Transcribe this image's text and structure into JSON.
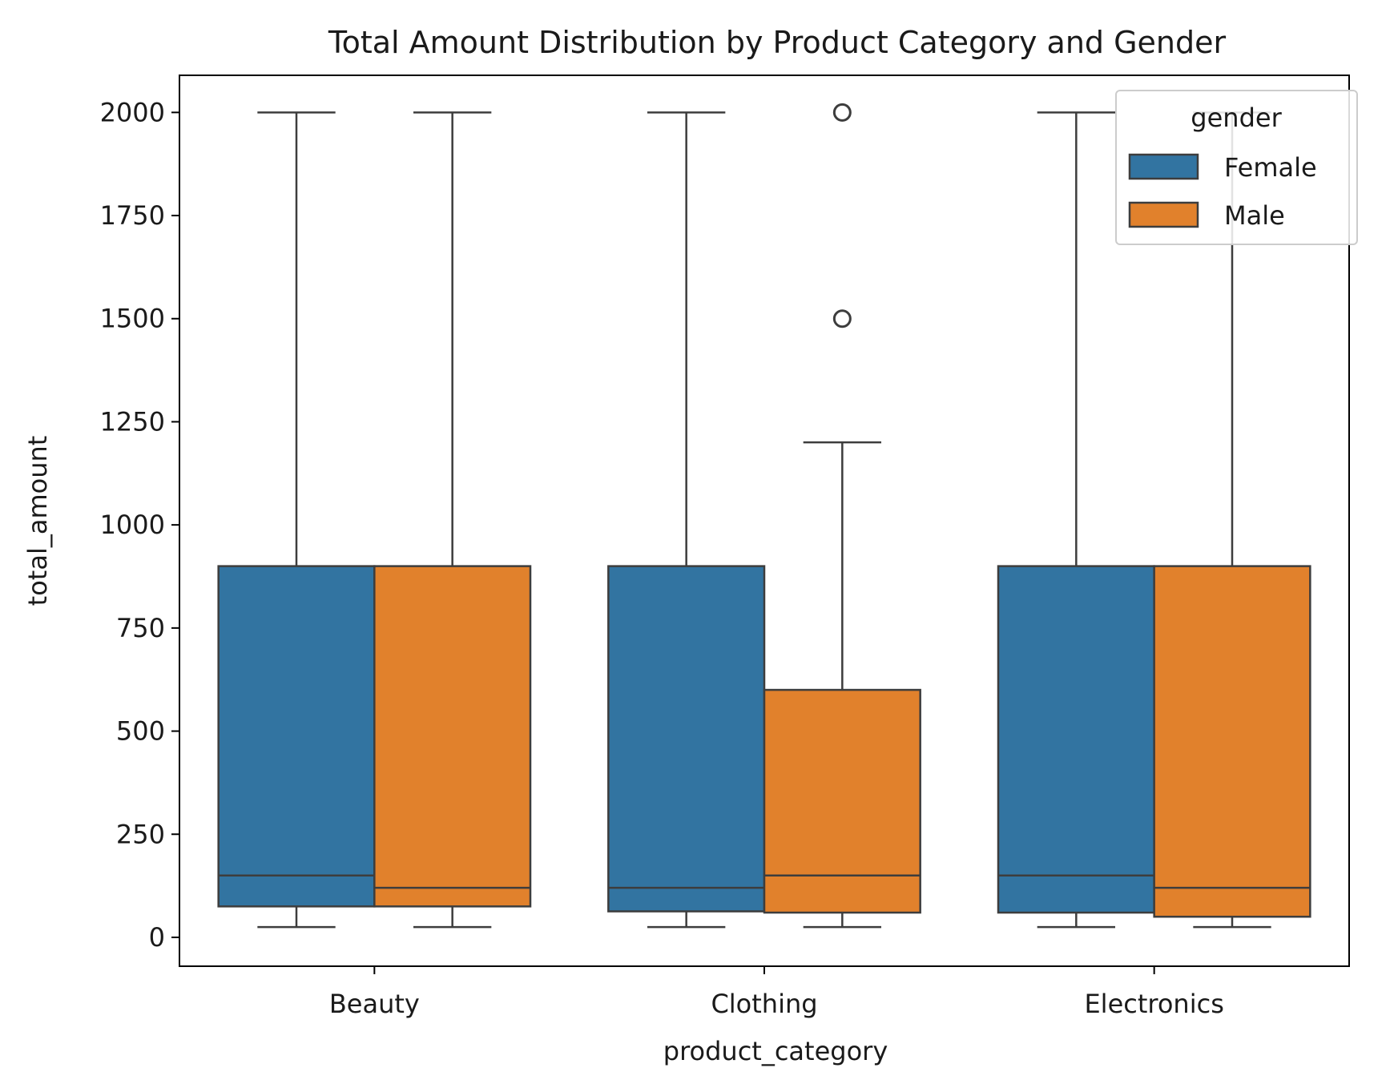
{
  "chart_data": {
    "type": "box",
    "title": "Total Amount Distribution by Product Category and Gender",
    "xlabel": "product_category",
    "ylabel": "total_amount",
    "categories": [
      "Beauty",
      "Clothing",
      "Electronics"
    ],
    "ylim": [
      -70,
      2090
    ],
    "yticks": [
      0,
      250,
      500,
      750,
      1000,
      1250,
      1500,
      1750,
      2000
    ],
    "legend": {
      "title": "gender",
      "position": "top-right"
    },
    "series": [
      {
        "name": "Female",
        "color": "#3274a1",
        "boxes": [
          {
            "category": "Beauty",
            "whisker_low": 25,
            "q1": 75,
            "median": 150,
            "q3": 900,
            "whisker_high": 2000,
            "outliers": []
          },
          {
            "category": "Clothing",
            "whisker_low": 25,
            "q1": 63,
            "median": 120,
            "q3": 900,
            "whisker_high": 2000,
            "outliers": []
          },
          {
            "category": "Electronics",
            "whisker_low": 25,
            "q1": 60,
            "median": 150,
            "q3": 900,
            "whisker_high": 2000,
            "outliers": []
          }
        ]
      },
      {
        "name": "Male",
        "color": "#e1812c",
        "boxes": [
          {
            "category": "Beauty",
            "whisker_low": 25,
            "q1": 75,
            "median": 120,
            "q3": 900,
            "whisker_high": 2000,
            "outliers": []
          },
          {
            "category": "Clothing",
            "whisker_low": 25,
            "q1": 60,
            "median": 150,
            "q3": 600,
            "whisker_high": 1200,
            "outliers": [
              1500,
              2000
            ]
          },
          {
            "category": "Electronics",
            "whisker_low": 25,
            "q1": 50,
            "median": 120,
            "q3": 900,
            "whisker_high": 2000,
            "outliers": []
          }
        ]
      }
    ],
    "grid": false
  }
}
